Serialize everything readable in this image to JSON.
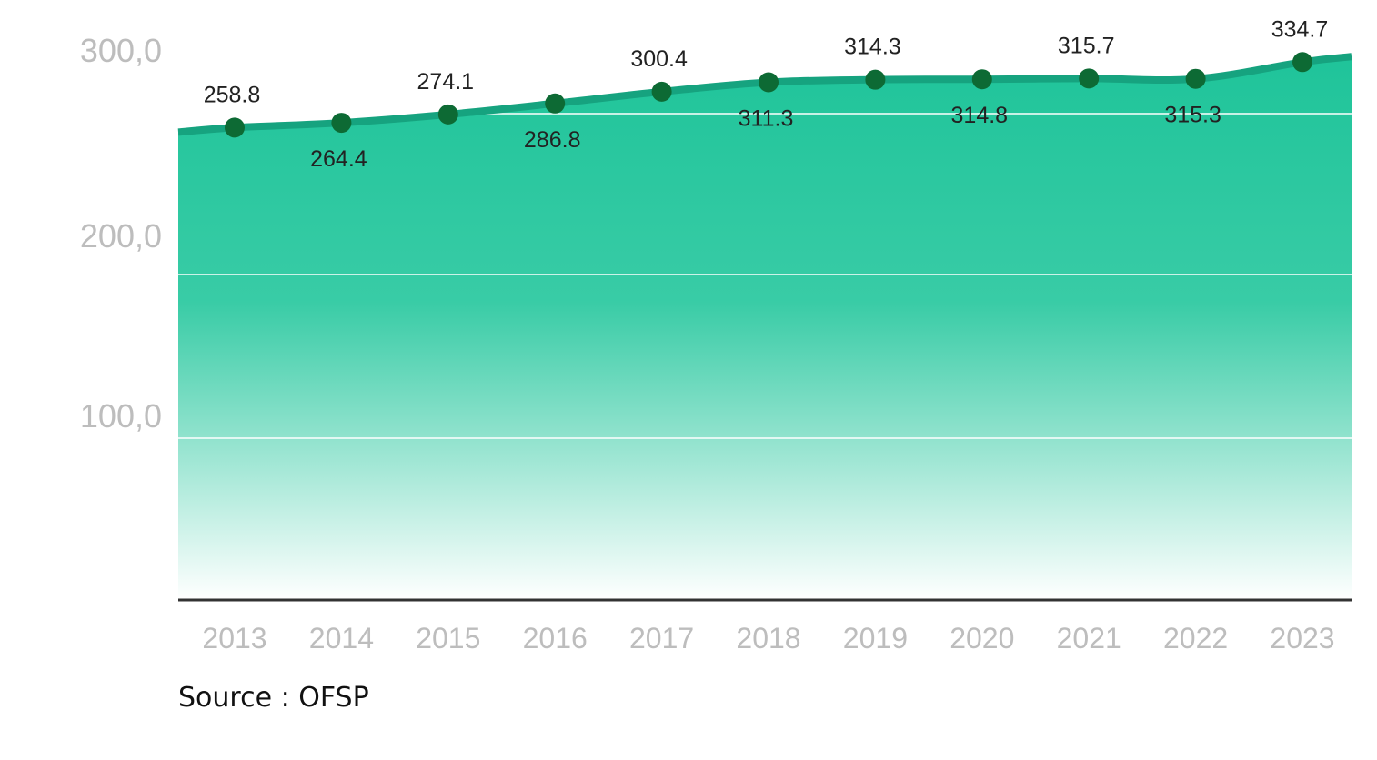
{
  "chart_data": {
    "type": "area",
    "x": [
      "2013",
      "2014",
      "2015",
      "2016",
      "2017",
      "2018",
      "2019",
      "2020",
      "2021",
      "2022",
      "2023"
    ],
    "series": [
      {
        "values": [
          258.8,
          264.4,
          274.1,
          286.8,
          300.4,
          311.3,
          314.3,
          314.8,
          315.7,
          315.3,
          334.7
        ]
      }
    ],
    "data_labels": [
      "258.8",
      "264.4",
      "274.1",
      "286.8",
      "300.4",
      "311.3",
      "314.3",
      "314.8",
      "315.7",
      "315.3",
      "334.7"
    ],
    "y_ticks": [
      {
        "value": 100,
        "label": "100,0"
      },
      {
        "value": 200,
        "label": "200,0"
      },
      {
        "value": 300,
        "label": "300,0"
      }
    ],
    "title": "",
    "xlabel": "",
    "ylabel": "",
    "grid": true,
    "legend": "none",
    "colors": {
      "area_top": "#1fc49a",
      "area_bottom": "#ffffff",
      "line": "#16a37f",
      "marker": "#0d6a34",
      "axis": "#333333",
      "tick_text": "#bdbdbd"
    }
  },
  "source": "Source : OFSP"
}
